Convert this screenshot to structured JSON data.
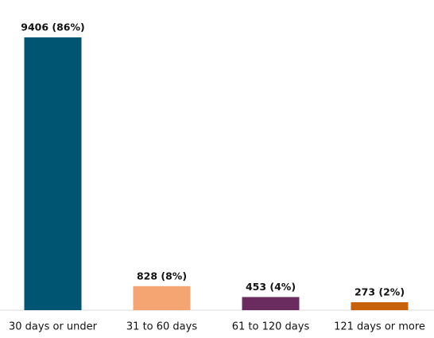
{
  "chart_data": {
    "type": "bar",
    "categories": [
      "30 days or under",
      "31 to 60 days",
      "61 to 120 days",
      "121 days or more"
    ],
    "values": [
      9406,
      828,
      453,
      273
    ],
    "value_labels": [
      "9406 (86%)",
      "828 (8%)",
      "453 (4%)",
      "273 (2%)"
    ],
    "colors": [
      "#005573",
      "#f4a572",
      "#6a2c5e",
      "#c8620a"
    ]
  }
}
